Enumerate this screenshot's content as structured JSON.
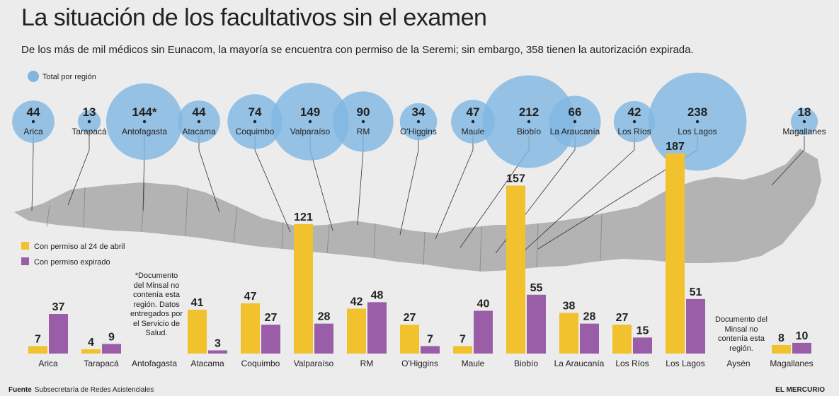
{
  "title": "La situación de los facultativos sin el examen",
  "subtitle": "De los más de mil médicos sin Eunacom, la mayoría se encuentra con permiso de la Seremi; sin embargo, 358 tienen la autorización expirada.",
  "source_label": "Fuente",
  "source_text": "Subsecretaría de Redes Asistenciales",
  "publisher": "EL MERCURIO",
  "note_antofagasta": "*Documento del Minsal no contenía esta región. Datos entregados por el Servicio de Salud.",
  "note_aysen": "Documento del Minsal no contenía esta región.",
  "colors": {
    "bubble": "#7fb6e2",
    "permiso": "#f2c12e",
    "expirado": "#9a5ea8",
    "map": "#a8a8a8"
  },
  "chart_data": {
    "type": "bar",
    "title": "La situación de los facultativos sin el examen",
    "categories": [
      "Arica",
      "Tarapacá",
      "Antofagasta",
      "Atacama",
      "Coquimbo",
      "Valparaíso",
      "RM",
      "O'Higgins",
      "Maule",
      "Biobío",
      "La Araucanía",
      "Los Ríos",
      "Los Lagos",
      "Aysén",
      "Magallanes"
    ],
    "series": [
      {
        "name": "Con permiso al 24 de abril",
        "values": [
          7,
          4,
          null,
          41,
          47,
          121,
          42,
          27,
          7,
          157,
          38,
          27,
          187,
          null,
          8
        ]
      },
      {
        "name": "Con permiso expirado",
        "values": [
          37,
          9,
          null,
          3,
          27,
          28,
          48,
          7,
          40,
          55,
          28,
          15,
          51,
          null,
          10
        ]
      }
    ],
    "bubbles": {
      "name": "Total por región",
      "regions": [
        "Arica",
        "Tarapacá",
        "Antofagasta",
        "Atacama",
        "Coquimbo",
        "Valparaíso",
        "RM",
        "O'Higgins",
        "Maule",
        "Biobío",
        "La Araucanía",
        "Los Ríos",
        "Los Lagos",
        "Magallanes"
      ],
      "labels": [
        "44",
        "13",
        "144*",
        "44",
        "74",
        "149",
        "90",
        "34",
        "47",
        "212",
        "66",
        "42",
        "238",
        "18"
      ],
      "values": [
        44,
        13,
        144,
        44,
        74,
        149,
        90,
        34,
        47,
        212,
        66,
        42,
        238,
        18
      ]
    },
    "ylim": [
      0,
      190
    ],
    "legend": [
      "Total por región",
      "Con permiso al 24 de abril",
      "Con permiso expirado"
    ]
  }
}
